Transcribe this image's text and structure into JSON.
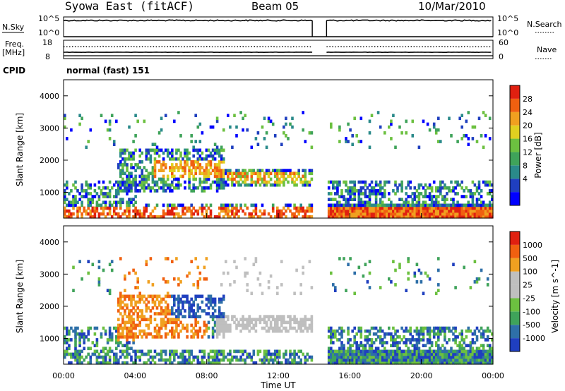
{
  "header": {
    "station": "Syowa East (fitACF)",
    "beam": "Beam 05",
    "date": "10/Mar/2010"
  },
  "top_panels": {
    "nsky_label": "N.Sky",
    "nsearch_label": "N.Search",
    "nsky_ticks": [
      "10^5",
      "10^0"
    ],
    "freq_label": "Freq.",
    "freq_unit": "[MHz]",
    "freq_ticks": [
      "18",
      "8"
    ],
    "nave_label": "Nave",
    "nave_ticks": [
      "60",
      "0"
    ],
    "cpid_label": "CPID",
    "cpid_value": "normal (fast) 151"
  },
  "x_axis": {
    "label": "Time UT",
    "ticks": [
      "00:00",
      "04:00",
      "08:00",
      "12:00",
      "16:00",
      "20:00",
      "00:00"
    ]
  },
  "power_panel": {
    "ylabel": "Slant Range [km]",
    "yticks": [
      "4000",
      "3000",
      "2000",
      "1000"
    ],
    "colorbar_label": "Power [dB]",
    "colorbar_ticks": [
      "28",
      "24",
      "20",
      "16",
      "12",
      "8",
      "4"
    ],
    "colors": [
      "#0000ff",
      "#1f3fbf",
      "#2a8a8a",
      "#3fa35a",
      "#6cc040",
      "#e0d020",
      "#f0a020",
      "#f06010",
      "#e02010"
    ]
  },
  "velocity_panel": {
    "ylabel": "Slant Range [km]",
    "yticks": [
      "4000",
      "3000",
      "2000",
      "1000"
    ],
    "colorbar_label": "Velocity [m s^-1]",
    "colorbar_ticks": [
      "1000",
      "500",
      "100",
      "25",
      "-25",
      "-100",
      "-500",
      "-1000"
    ],
    "colors": [
      "#1f3fbf",
      "#2e6fa8",
      "#3fa35a",
      "#6cc040",
      "#bfbfbf",
      "#bfbfbf",
      "#f0a020",
      "#f06010",
      "#e02010"
    ]
  },
  "chart_data": {
    "type": "heatmap",
    "title": "Syowa East (fitACF)",
    "xlabel": "Time UT",
    "ylabel": "Slant Range [km]",
    "xlim_hours": [
      0,
      24
    ],
    "ylim_km": [
      200,
      4500
    ],
    "data_gap_hours": [
      13.9,
      14.7
    ],
    "power_scale_dB": [
      0,
      30
    ],
    "velocity_scale_ms": [
      -1000,
      1000
    ],
    "grid": false,
    "note_series": [
      {
        "name": "Power [dB]",
        "values": "2D time-range backscatter power image"
      },
      {
        "name": "Velocity [m s^-1]",
        "values": "2D time-range line-of-sight velocity image"
      }
    ]
  }
}
